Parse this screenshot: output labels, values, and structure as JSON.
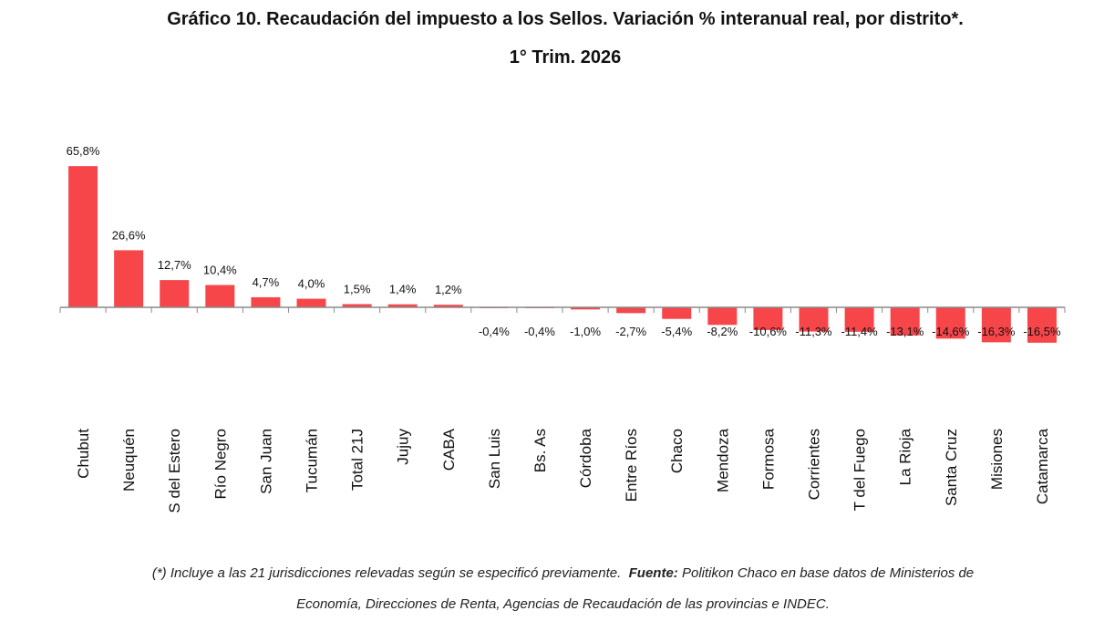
{
  "header": {
    "title": "Gráfico 10. Recaudación del impuesto a los Sellos. Variación % interanual real, por distrito*.",
    "subtitle": "1° Trim. 2026"
  },
  "footnote": {
    "line1_prefix": "(*) Incluye a las 21 jurisdicciones relevadas según se especificó previamente.",
    "source_label": "Fuente:",
    "line1_suffix": "Politikon Chaco en base datos de Ministerios de",
    "line2": "Economía, Direcciones de Renta, Agencias de Recaudación de las provincias e INDEC."
  },
  "chart_data": {
    "type": "bar",
    "categories": [
      "Chubut",
      "Neuquén",
      "S del Estero",
      "Río Negro",
      "San Juan",
      "Tucumán",
      "Total 21J",
      "Jujuy",
      "CABA",
      "San Luis",
      "Bs. As",
      "Córdoba",
      "Entre Ríos",
      "Chaco",
      "Mendoza",
      "Formosa",
      "Corrientes",
      "T del Fuego",
      "La Rioja",
      "Santa Cruz",
      "Misiones",
      "Catamarca"
    ],
    "values": [
      65.8,
      26.6,
      12.7,
      10.4,
      4.7,
      4.0,
      1.5,
      1.4,
      1.2,
      -0.4,
      -0.4,
      -1.0,
      -2.7,
      -5.4,
      -8.2,
      -10.6,
      -11.3,
      -11.4,
      -13.1,
      -14.6,
      -16.3,
      -16.5
    ],
    "data_labels": [
      "65,8%",
      "26,6%",
      "12,7%",
      "10,4%",
      "4,7%",
      "4,0%",
      "1,5%",
      "1,4%",
      "1,2%",
      "-0,4%",
      "-0,4%",
      "-1,0%",
      "-2,7%",
      "-5,4%",
      "-8,2%",
      "-10,6%",
      "-11,3%",
      "-11,4%",
      "-13,1%",
      "-14,6%",
      "-16,3%",
      "-16,5%"
    ],
    "bar_color": "#f7464a",
    "axis_color": "#8a8a8a",
    "grid": false,
    "legend": "none"
  }
}
